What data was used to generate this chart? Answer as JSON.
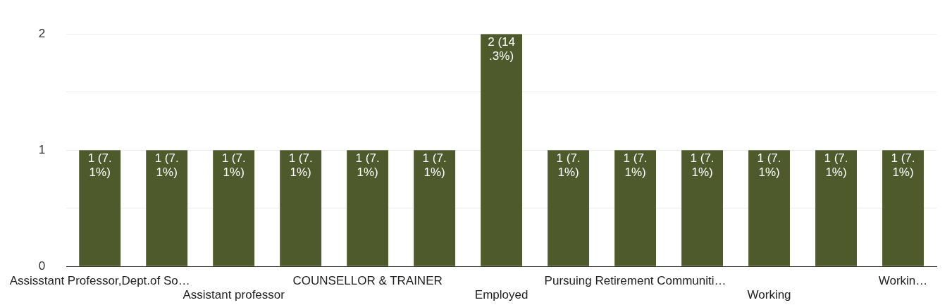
{
  "chart_data": {
    "type": "bar",
    "categories": [
      "Assisstant Professor,Dept.of So…",
      null,
      "Assistant professor",
      null,
      "COUNSELLOR & TRAINER",
      null,
      "Employed",
      null,
      "Pursuing Retirement Communiti…",
      null,
      "Working",
      null,
      "Workin…"
    ],
    "values": [
      1,
      1,
      1,
      1,
      1,
      1,
      2,
      1,
      1,
      1,
      1,
      1,
      1
    ],
    "value_labels": [
      "1 (7.1%)",
      "1 (7.1%)",
      "1 (7.1%)",
      "1 (7.1%)",
      "1 (7.1%)",
      "1 (7.1%)",
      "2 (14.3%)",
      "1 (7.1%)",
      "1 (7.1%)",
      "1 (7.1%)",
      "1 (7.1%)",
      "1 (7.1%)",
      "1 (7.1%)"
    ],
    "color": "#4e5a2b",
    "ylim": [
      0,
      2
    ],
    "yticks": [
      0,
      {
        "value": 0.5,
        "label": null
      },
      1,
      {
        "value": 1.5,
        "label": null
      },
      2
    ],
    "grid": "y"
  }
}
